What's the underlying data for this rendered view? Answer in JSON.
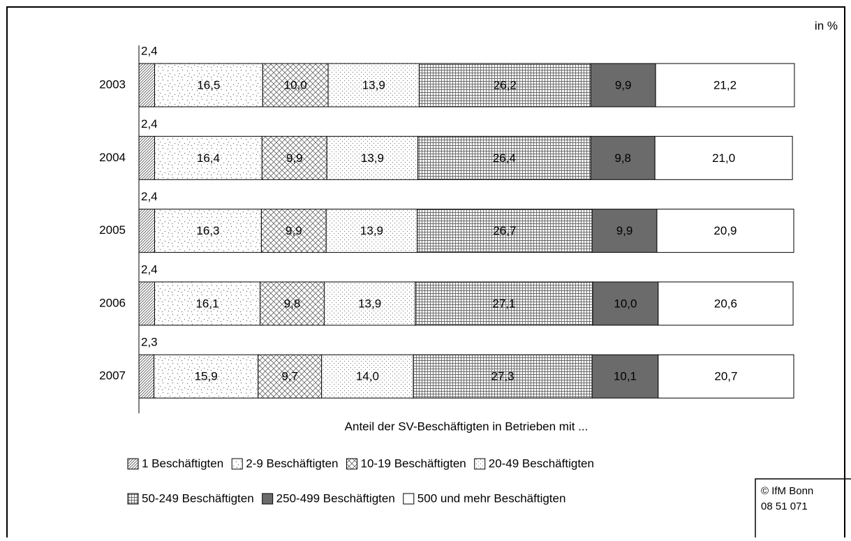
{
  "chart_data": {
    "type": "stacked-bar",
    "unit_label": "in %",
    "x_label": "Anteil der SV-Beschäftigten in Betrieben mit ...",
    "categories": [
      "2003",
      "2004",
      "2005",
      "2006",
      "2007"
    ],
    "xlim": [
      0,
      100
    ],
    "series": [
      {
        "name": "1 Beschäftigten",
        "values": [
          2.4,
          2.4,
          2.4,
          2.4,
          2.3
        ],
        "value_labels": [
          "2,4",
          "2,4",
          "2,4",
          "2,4",
          "2,3"
        ]
      },
      {
        "name": "2-9 Beschäftigten",
        "values": [
          16.5,
          16.4,
          16.3,
          16.1,
          15.9
        ],
        "value_labels": [
          "16,5",
          "16,4",
          "16,3",
          "16,1",
          "15,9"
        ]
      },
      {
        "name": "10-19 Beschäftigten",
        "values": [
          10.0,
          9.9,
          9.9,
          9.8,
          9.7
        ],
        "value_labels": [
          "10,0",
          "9,9",
          "9,9",
          "9,8",
          "9,7"
        ]
      },
      {
        "name": "20-49 Beschäftigten",
        "values": [
          13.9,
          13.9,
          13.9,
          13.9,
          14.0
        ],
        "value_labels": [
          "13,9",
          "13,9",
          "13,9",
          "13,9",
          "14,0"
        ]
      },
      {
        "name": "50-249 Beschäftigten",
        "values": [
          26.2,
          26.4,
          26.7,
          27.1,
          27.3
        ],
        "value_labels": [
          "26,2",
          "26,4",
          "26,7",
          "27,1",
          "27,3"
        ]
      },
      {
        "name": "250-499 Beschäftigten",
        "values": [
          9.9,
          9.8,
          9.9,
          10.0,
          10.1
        ],
        "value_labels": [
          "9,9",
          "9,8",
          "9,9",
          "10,0",
          "10,1"
        ]
      },
      {
        "name": "500 und mehr Beschäftigten",
        "values": [
          21.2,
          21.0,
          20.9,
          20.6,
          20.7
        ],
        "value_labels": [
          "21,2",
          "21,0",
          "20,9",
          "20,6",
          "20,7"
        ]
      }
    ]
  },
  "footer": {
    "copyright": "© IfM Bonn",
    "code": "08 51 071"
  }
}
